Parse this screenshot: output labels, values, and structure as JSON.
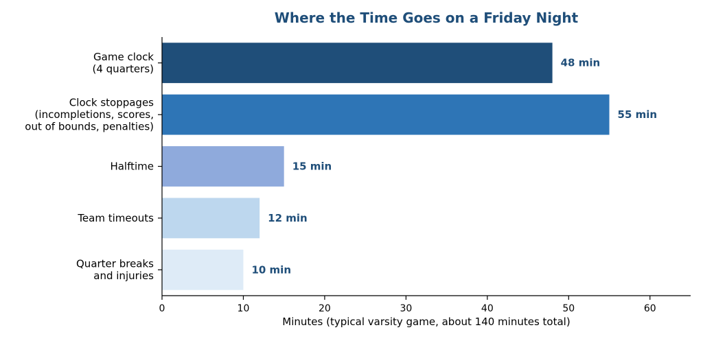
{
  "chart_data": {
    "type": "bar",
    "orientation": "horizontal",
    "title": "Where the Time Goes on a Friday Night",
    "xlabel": "Minutes (typical varsity game, about 140 minutes total)",
    "ylabel": "",
    "xlim": [
      0,
      65
    ],
    "xticks": [
      0,
      10,
      20,
      30,
      40,
      50,
      60
    ],
    "grid": false,
    "categories": [
      [
        "Game clock",
        "(4 quarters)"
      ],
      [
        "Clock stoppages",
        "(incompletions, scores,",
        "out of bounds, penalties)"
      ],
      [
        "Halftime"
      ],
      [
        "Team timeouts"
      ],
      [
        "Quarter breaks",
        "and injuries"
      ]
    ],
    "values": [
      48,
      55,
      15,
      12,
      10
    ],
    "value_labels": [
      "48 min",
      "55 min",
      "15 min",
      "12 min",
      "10 min"
    ],
    "colors": [
      "#1f4e79",
      "#2e75b6",
      "#8faadc",
      "#bdd7ee",
      "#deebf7"
    ]
  }
}
